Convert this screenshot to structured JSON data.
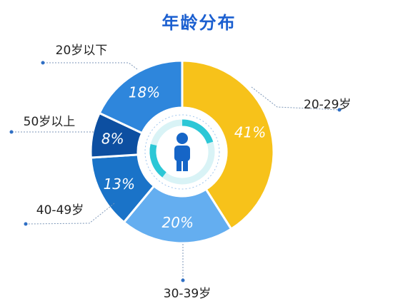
{
  "chart_data": {
    "type": "pie",
    "style": "donut",
    "title": "年龄分布",
    "categories": [
      "20-29岁",
      "30-39岁",
      "40-49岁",
      "50岁以上",
      "20岁以下"
    ],
    "values": [
      41,
      20,
      13,
      8,
      18
    ],
    "value_labels": [
      "41%",
      "20%",
      "13%",
      "8%",
      "18%"
    ],
    "colors": [
      "#f7c21a",
      "#64aef0",
      "#1a73c8",
      "#0d4fa1",
      "#2e86dc"
    ],
    "center_icon": "person-icon"
  }
}
